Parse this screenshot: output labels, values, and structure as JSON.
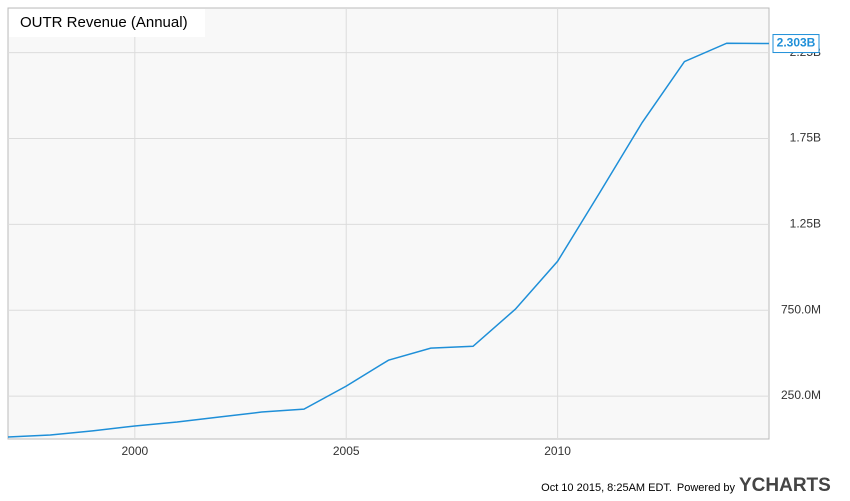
{
  "chart_data": {
    "type": "line",
    "title": "OUTR Revenue (Annual)",
    "x": [
      1997,
      1998,
      1999,
      2000,
      2001,
      2002,
      2003,
      2004,
      2005,
      2006,
      2007,
      2008,
      2009,
      2010,
      2011,
      2012,
      2013,
      2014,
      2015
    ],
    "series": [
      {
        "name": "OUTR Revenue (Annual)",
        "color": "#1e8fd8",
        "values": [
          12000000,
          23000000,
          47000000,
          76000000,
          99000000,
          128000000,
          157000000,
          174000000,
          308000000,
          459000000,
          529000000,
          540000000,
          756000000,
          1035000000,
          1436000000,
          1843000000,
          2198000000,
          2305000000,
          2303000000
        ],
        "value_labels": [
          null,
          null,
          null,
          null,
          null,
          null,
          null,
          null,
          null,
          null,
          null,
          null,
          null,
          null,
          null,
          null,
          null,
          null,
          "2.303B"
        ]
      }
    ],
    "xlim": [
      1997,
      2015
    ],
    "xticks": [
      2000,
      2005,
      2010
    ],
    "ylim": [
      0,
      2510000000
    ],
    "yticks": [
      {
        "value": 250000000,
        "label": "250.0M"
      },
      {
        "value": 750000000,
        "label": "750.0M"
      },
      {
        "value": 1250000000,
        "label": "1.25B"
      },
      {
        "value": 1750000000,
        "label": "1.75B"
      },
      {
        "value": 2250000000,
        "label": "2.25B"
      }
    ],
    "grid": true
  },
  "footer": {
    "timestamp": "Oct 10 2015, 8:25AM EDT.",
    "powered_by": "Powered by",
    "brand": "YCHARTS"
  }
}
